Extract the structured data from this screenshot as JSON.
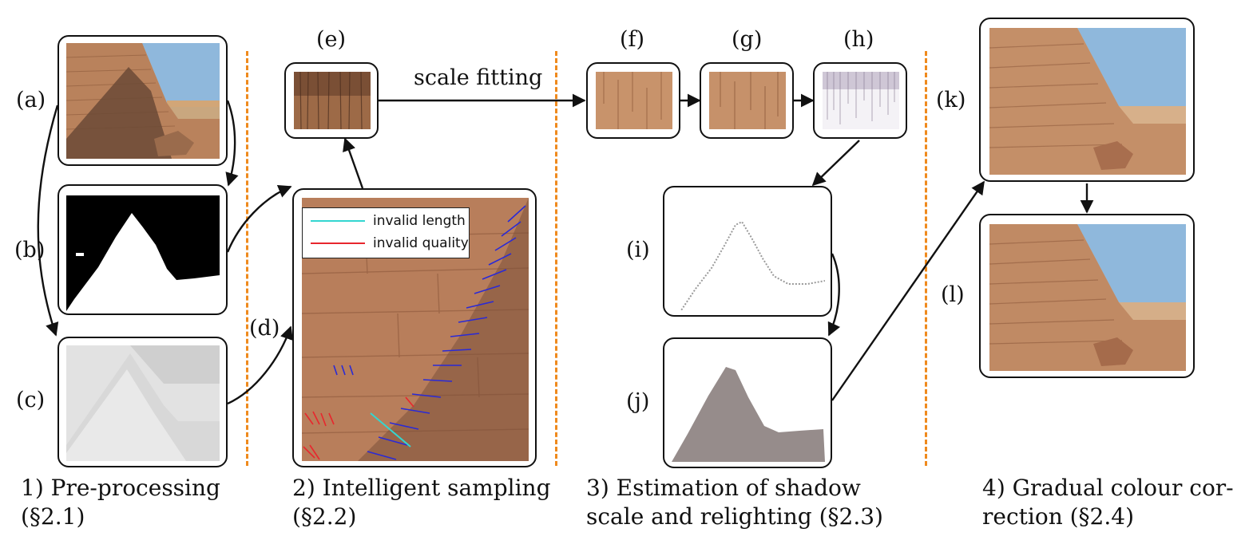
{
  "panels": {
    "a": "(a)",
    "b": "(b)",
    "c": "(c)",
    "d": "(d)",
    "e": "(e)",
    "f": "(f)",
    "g": "(g)",
    "h": "(h)",
    "i": "(i)",
    "j": "(j)",
    "k": "(k)",
    "l": "(l)"
  },
  "arrow_label": "scale fitting",
  "legend": {
    "invalid_length": "invalid length",
    "invalid_quality": "invalid quality"
  },
  "legend_colors": {
    "invalid_length": "#33d6d0",
    "invalid_quality": "#e8262d",
    "sample": "#2a2ad6"
  },
  "stages": [
    {
      "line1": "1) Pre-processing",
      "line2": "(§2.1)"
    },
    {
      "line1": "2) Intelligent sampling",
      "line2": "(§2.2)"
    },
    {
      "line1": "3) Estimation of shadow",
      "line2": "scale and relighting (§2.3)"
    },
    {
      "line1": "4) Gradual colour cor-",
      "line2": "rection (§2.4)"
    }
  ],
  "colors": {
    "divider": "#ef8a1d",
    "stone": "#b9825c",
    "sky": "#8fb8dc",
    "shadow": "#6b4a36"
  }
}
